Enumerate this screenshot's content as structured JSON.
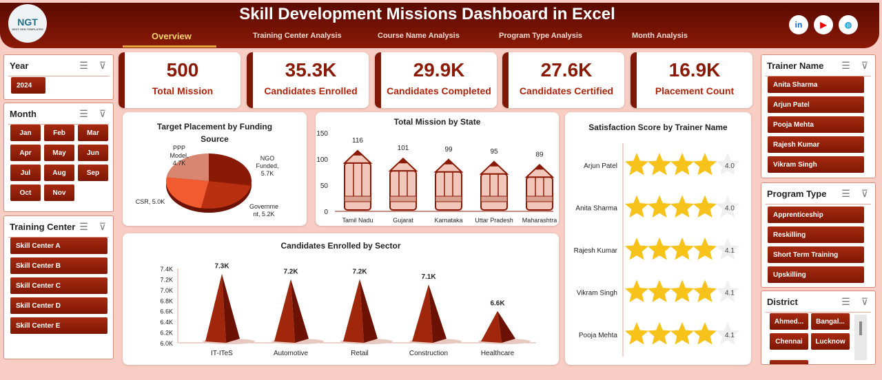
{
  "header": {
    "title": "Skill Development Missions Dashboard in Excel",
    "logo_text": "NGT",
    "logo_sub": "NEXT GEN TEMPLATES",
    "tabs": [
      {
        "label": "Overview",
        "active": true
      },
      {
        "label": "Training Center Analysis"
      },
      {
        "label": "Course Name Analysis"
      },
      {
        "label": "Program Type Analysis"
      },
      {
        "label": "Month Analysis"
      }
    ],
    "social": [
      {
        "icon": "linkedin-icon",
        "glyph": "in",
        "color": "#0a66c2"
      },
      {
        "icon": "youtube-icon",
        "glyph": "▶",
        "color": "#e00"
      },
      {
        "icon": "globe-icon",
        "glyph": "◍",
        "color": "#1aa3d4"
      }
    ]
  },
  "slicers": {
    "year": {
      "title": "Year",
      "items": [
        "2024"
      ]
    },
    "month": {
      "title": "Month",
      "items": [
        "Jan",
        "Feb",
        "Mar",
        "Apr",
        "May",
        "Jun",
        "Jul",
        "Aug",
        "Sep",
        "Oct",
        "Nov"
      ]
    },
    "training_center": {
      "title": "Training Center",
      "items": [
        "Skill Center A",
        "Skill Center B",
        "Skill Center C",
        "Skill Center D",
        "Skill Center E"
      ]
    },
    "trainer": {
      "title": "Trainer Name",
      "items": [
        "Anita Sharma",
        "Arjun Patel",
        "Pooja Mehta",
        "Rajesh Kumar",
        "Vikram Singh"
      ]
    },
    "program_type": {
      "title": "Program Type",
      "items": [
        "Apprenticeship",
        "Reskilling",
        "Short Term Training",
        "Upskilling"
      ]
    },
    "district": {
      "title": "District",
      "items": [
        "Ahmed...",
        "Bangal...",
        "Chennai",
        "Lucknow"
      ]
    }
  },
  "kpis": [
    {
      "value": "500",
      "label": "Total Mission"
    },
    {
      "value": "35.3K",
      "label": "Candidates Enrolled"
    },
    {
      "value": "29.9K",
      "label": "Candidates Completed"
    },
    {
      "value": "27.6K",
      "label": "Candidates Certified"
    },
    {
      "value": "16.9K",
      "label": "Placement Count"
    }
  ],
  "chart_data": [
    {
      "type": "pie",
      "title": "Target Placement by Funding Source",
      "categories": [
        "NGO Funded",
        "Government",
        "CSR",
        "PPP Model"
      ],
      "values": [
        5.7,
        5.2,
        5.0,
        4.7
      ],
      "unit": "K",
      "labels": [
        "NGO Funded, 5.7K",
        "Government, 5.2K",
        "CSR, 5.0K",
        "PPP Model, 4.7K"
      ],
      "colors": [
        "#8a1a06",
        "#b8300f",
        "#f25a30",
        "#d98670"
      ]
    },
    {
      "type": "bar",
      "title": "Total Mission by State",
      "categories": [
        "Tamil Nadu",
        "Gujarat",
        "Karnataka",
        "Uttar Pradesh",
        "Maharashtra"
      ],
      "values": [
        116,
        101,
        99,
        95,
        89
      ],
      "ylim": [
        0,
        150
      ],
      "yticks": [
        0,
        50,
        100,
        150
      ]
    },
    {
      "type": "bar",
      "title": "Candidates Enrolled by Sector",
      "categories": [
        "IT-ITeS",
        "Automotive",
        "Retail",
        "Construction",
        "Healthcare"
      ],
      "values": [
        7.3,
        7.2,
        7.2,
        7.1,
        6.6
      ],
      "labels": [
        "7.3K",
        "7.2K",
        "7.2K",
        "7.1K",
        "6.6K"
      ],
      "ylim": [
        6.0,
        7.4
      ],
      "yticks": [
        "6.0K",
        "6.2K",
        "6.4K",
        "6.6K",
        "6.8K",
        "7.0K",
        "7.2K",
        "7.4K"
      ]
    },
    {
      "type": "bar",
      "title": "Satisfaction Score by Trainer Name",
      "categories": [
        "Arjun Patel",
        "Anita Sharma",
        "Rajesh Kumar",
        "Vikram Singh",
        "Pooja Mehta"
      ],
      "values": [
        4.0,
        4.0,
        4.1,
        4.1,
        4.1
      ],
      "labels": [
        "4.0",
        "4.0",
        "4.1",
        "4.1",
        "4.1"
      ],
      "max": 5
    }
  ]
}
